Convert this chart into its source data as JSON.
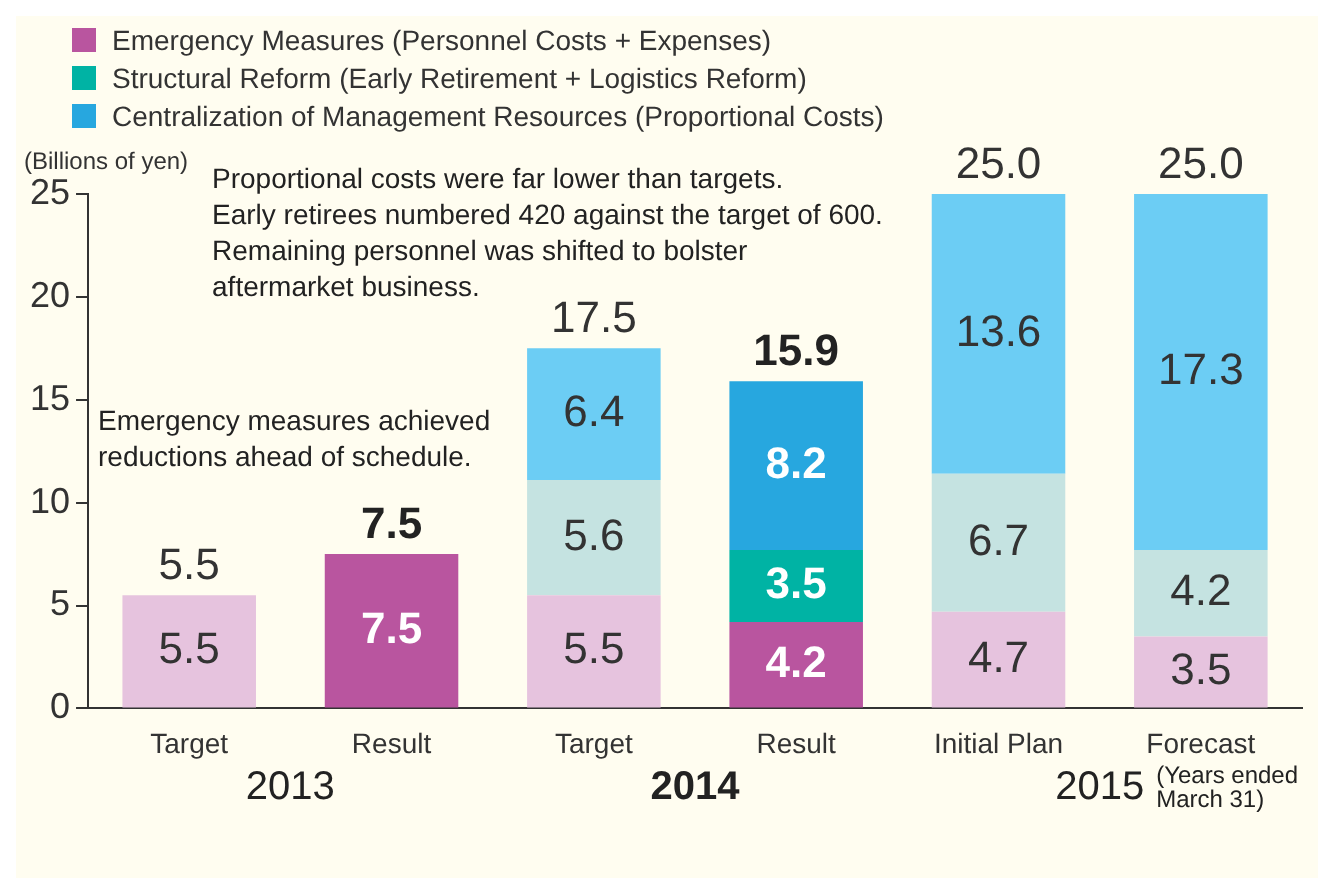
{
  "chart_data": {
    "type": "bar",
    "stacked": true,
    "categories": [
      "Target",
      "Result",
      "Target",
      "Result",
      "Initial Plan",
      "Forecast"
    ],
    "series": [
      {
        "name": "Emergency Measures (Personnel Costs + Expenses)",
        "color": "#b9559f",
        "colors": [
          "#e6c3de",
          "#b9559f",
          "#e6c3de",
          "#b9559f",
          "#e6c3de",
          "#e6c3de"
        ],
        "values": [
          5.5,
          7.5,
          5.5,
          4.2,
          4.7,
          3.5
        ]
      },
      {
        "name": "Structural Reform (Early Retirement + Logistics Reform)",
        "color": "#00b3a4",
        "colors": [
          "#c5e3e1",
          "#00b3a4",
          "#c5e3e1",
          "#00b3a4",
          "#c5e3e1",
          "#c5e3e1"
        ],
        "values": [
          null,
          null,
          5.6,
          3.5,
          6.7,
          4.2
        ]
      },
      {
        "name": "Centralization of Management Resources (Proportional Costs)",
        "color": "#27a7df",
        "colors": [
          "#6ccdf4",
          "#27a7df",
          "#6ccdf4",
          "#27a7df",
          "#6ccdf4",
          "#6ccdf4"
        ],
        "values": [
          null,
          null,
          6.4,
          8.2,
          13.6,
          17.3
        ]
      }
    ],
    "totals": [
      "5.5",
      "7.5",
      "17.5",
      "15.9",
      "25.0",
      "25.0"
    ],
    "data_labels": true,
    "ylabel": "(Billions of yen)",
    "ylim": [
      0,
      25
    ],
    "yticks": [
      0,
      5,
      10,
      15,
      20,
      25
    ],
    "grid": false,
    "legend": "top left",
    "annotations": [
      "Proportional costs were far lower than targets.\nEarly retirees numbered 420 against the target of 600.\nRemaining personnel was shifted to bolster\naftermarket business.",
      "Emergency measures achieved\nreductions ahead of schedule.",
      "2013",
      "2014",
      "2015",
      "(Years ended\nMarch 31)"
    ]
  }
}
